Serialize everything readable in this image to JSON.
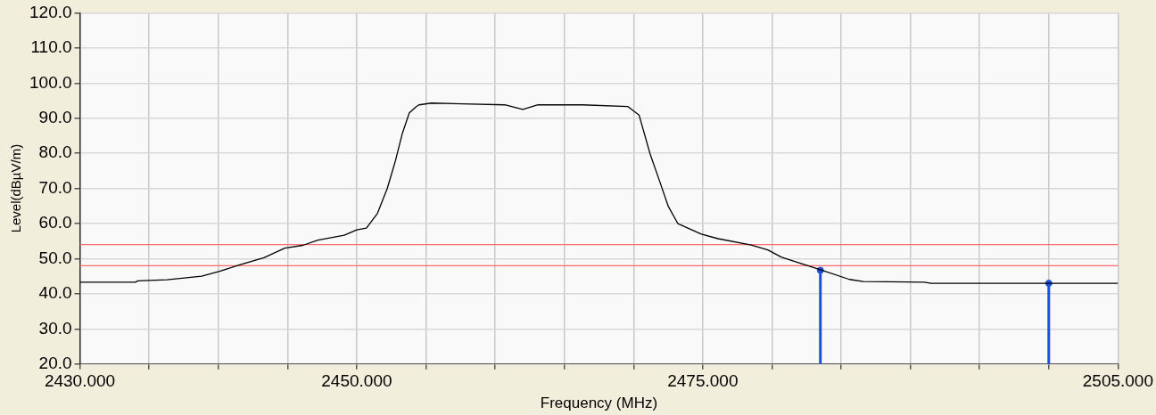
{
  "chart_data": {
    "type": "line",
    "xlabel": "Frequency (MHz)",
    "ylabel": "Level(dBµV/m)",
    "xlim": [
      2430,
      2505
    ],
    "xticks": [
      {
        "value": 2430,
        "label": "2430.000"
      },
      {
        "value": 2435,
        "label": null
      },
      {
        "value": 2440,
        "label": null
      },
      {
        "value": 2445,
        "label": null
      },
      {
        "value": 2450,
        "label": "2450.000"
      },
      {
        "value": 2455,
        "label": null
      },
      {
        "value": 2460,
        "label": null
      },
      {
        "value": 2465,
        "label": null
      },
      {
        "value": 2470,
        "label": null
      },
      {
        "value": 2475,
        "label": "2475.000"
      },
      {
        "value": 2480,
        "label": null
      },
      {
        "value": 2485,
        "label": null
      },
      {
        "value": 2490,
        "label": null
      },
      {
        "value": 2495,
        "label": null
      },
      {
        "value": 2500,
        "label": null
      },
      {
        "value": 2505,
        "label": "2505.000"
      }
    ],
    "ylim": [
      20,
      120
    ],
    "yticks": [
      {
        "value": 20,
        "label": "20.0"
      },
      {
        "value": 30,
        "label": "30.0"
      },
      {
        "value": 40,
        "label": "40.0"
      },
      {
        "value": 50,
        "label": "50.0"
      },
      {
        "value": 60,
        "label": "60.0"
      },
      {
        "value": 70,
        "label": "70.0"
      },
      {
        "value": 80,
        "label": "80.0"
      },
      {
        "value": 90,
        "label": "90.0"
      },
      {
        "value": 100,
        "label": "100.0"
      },
      {
        "value": 110,
        "label": "110.0"
      },
      {
        "value": 120,
        "label": "120.0"
      }
    ],
    "grid": true,
    "legend": false,
    "marker": "none",
    "line_style": "solid",
    "series": [
      {
        "color": "#000000",
        "x": [
          2430,
          2434,
          2434.2,
          2436.3,
          2438.8,
          2440.1,
          2441.6,
          2443.3,
          2444.8,
          2446.1,
          2447.2,
          2449.1,
          2450,
          2450.7,
          2451.5,
          2452.2,
          2452.8,
          2453.3,
          2453.8,
          2454.3,
          2454.5,
          2455.4,
          2457.7,
          2460.7,
          2462,
          2463.1,
          2466.3,
          2469.6,
          2470.4,
          2471.2,
          2471.9,
          2472.5,
          2473.2,
          2474.1,
          2474.9,
          2476.1,
          2478.5,
          2479.7,
          2480.7,
          2483.4,
          2485.6,
          2486.6,
          2491,
          2491.5,
          2505
        ],
        "values": [
          43.3,
          43.3,
          43.7,
          44,
          45,
          46.4,
          48.3,
          50.3,
          53,
          53.8,
          55.3,
          56.7,
          58.2,
          58.7,
          62.9,
          69.9,
          77.9,
          85.7,
          91.5,
          93.3,
          93.8,
          94.3,
          94.1,
          93.8,
          92.5,
          93.8,
          93.8,
          93.3,
          90.9,
          79.8,
          71.9,
          65,
          60,
          58.4,
          57,
          55.7,
          53.9,
          52.5,
          50.4,
          47,
          44.1,
          43.5,
          43.3,
          43,
          43
        ]
      },
      {
        "type": "lollipop",
        "marker": "circle",
        "color": "#1f4fd8",
        "x": [
          2483.5,
          2500
        ],
        "values": [
          46.7,
          43
        ]
      }
    ],
    "ref_lines": [
      {
        "axis": "y",
        "value": 54,
        "color": "#ff6b6b"
      },
      {
        "axis": "y",
        "value": 48,
        "color": "#ff6b6b"
      }
    ]
  }
}
